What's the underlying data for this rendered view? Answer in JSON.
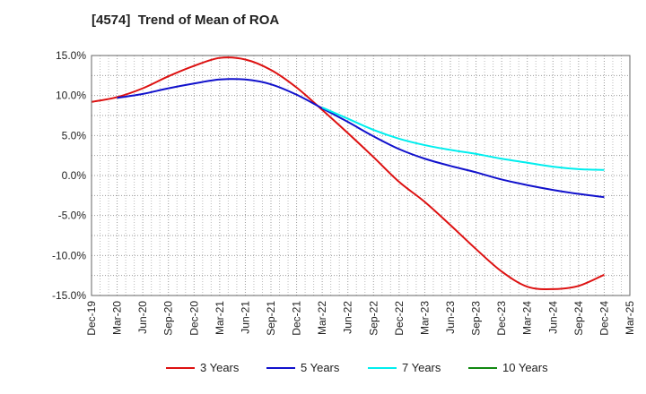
{
  "chart_data": {
    "type": "line",
    "title": "[4574]  Trend of Mean of ROA",
    "xlabel": "",
    "ylabel": "",
    "ylim": [
      -15,
      15
    ],
    "y_ticks": [
      15,
      10,
      5,
      0,
      -5,
      -10,
      -15
    ],
    "y_tick_labels": [
      "15.0%",
      "10.0%",
      "5.0%",
      "0.0%",
      "-5.0%",
      "-10.0%",
      "-15.0%"
    ],
    "categories": [
      "Dec-19",
      "Mar-20",
      "Jun-20",
      "Sep-20",
      "Dec-20",
      "Mar-21",
      "Jun-21",
      "Sep-21",
      "Dec-21",
      "Mar-22",
      "Jun-22",
      "Sep-22",
      "Dec-22",
      "Mar-23",
      "Jun-23",
      "Sep-23",
      "Dec-23",
      "Mar-24",
      "Jun-24",
      "Sep-24",
      "Dec-24",
      "Mar-25"
    ],
    "grid": true,
    "legend_position": "bottom",
    "series": [
      {
        "name": "3 Years",
        "color": "#dd1111",
        "values": [
          9.2,
          9.8,
          10.9,
          12.4,
          13.7,
          14.7,
          14.5,
          13.2,
          11.0,
          8.2,
          5.3,
          2.3,
          -0.8,
          -3.3,
          -6.2,
          -9.2,
          -12.0,
          -13.9,
          -14.2,
          -13.8,
          -12.4,
          null
        ]
      },
      {
        "name": "5 Years",
        "color": "#1111cc",
        "values": [
          null,
          9.7,
          10.2,
          10.9,
          11.5,
          12.0,
          12.0,
          11.4,
          10.1,
          8.4,
          6.7,
          4.9,
          3.3,
          2.1,
          1.2,
          0.4,
          -0.5,
          -1.2,
          -1.8,
          -2.3,
          -2.7,
          null
        ]
      },
      {
        "name": "7 Years",
        "color": "#00eeee",
        "values": [
          null,
          null,
          null,
          null,
          null,
          null,
          null,
          null,
          null,
          8.5,
          7.1,
          5.7,
          4.6,
          3.8,
          3.2,
          2.7,
          2.1,
          1.6,
          1.1,
          0.8,
          0.7,
          null
        ]
      },
      {
        "name": "10 Years",
        "color": "#118811",
        "values": [
          null,
          null,
          null,
          null,
          null,
          null,
          null,
          null,
          null,
          null,
          null,
          null,
          null,
          null,
          null,
          null,
          null,
          null,
          null,
          null,
          null,
          null
        ]
      }
    ]
  }
}
